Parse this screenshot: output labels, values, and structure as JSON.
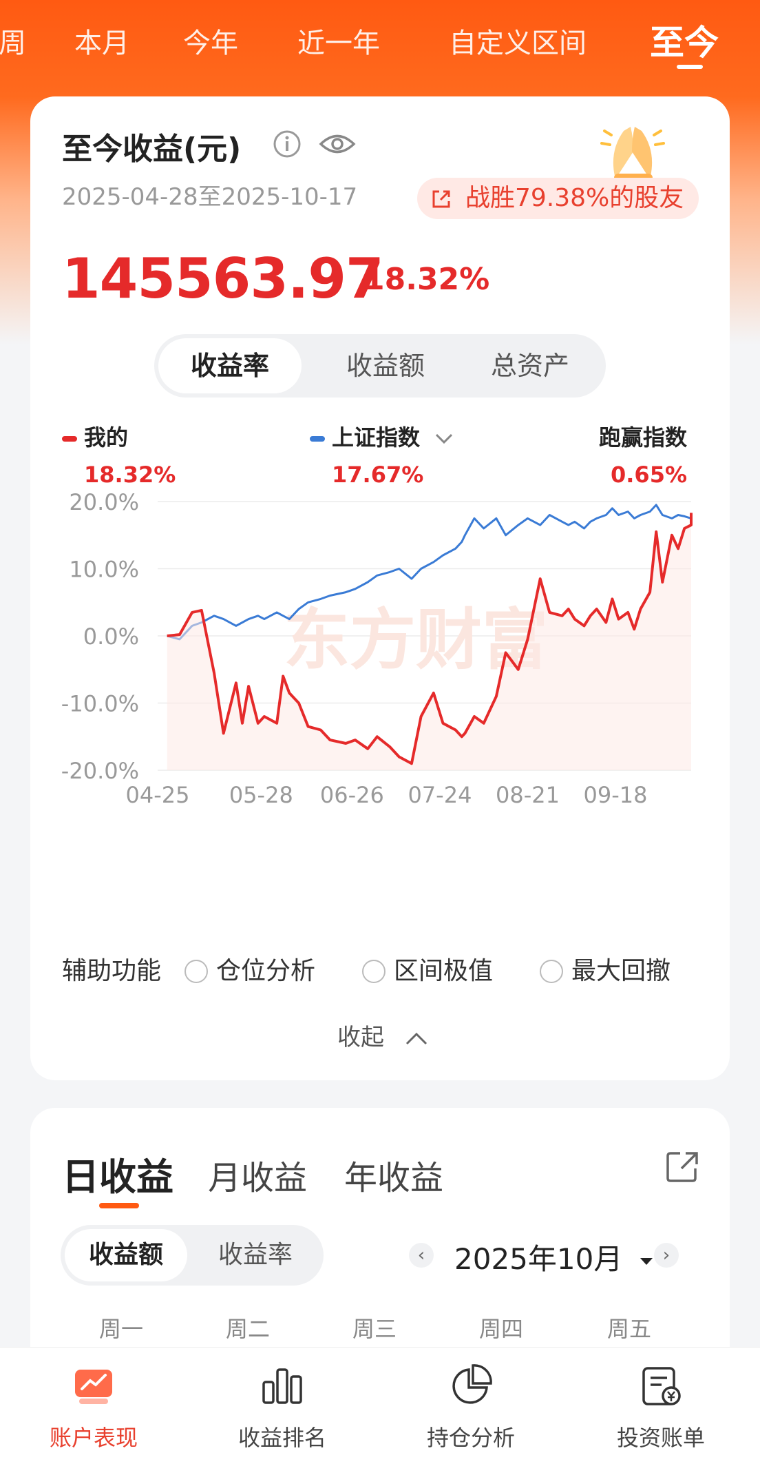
{
  "period_tabs": [
    "周",
    "本月",
    "今年",
    "近一年",
    "自定义区间",
    "至今"
  ],
  "active_period": "至今",
  "summary": {
    "title": "至今收益(元)",
    "date_range": "2025-04-28至2025-10-17",
    "beat_text": "战胜79.38%的股友",
    "amount": "145563.97",
    "percent": "18.32%"
  },
  "metric_tabs": [
    "收益率",
    "收益额",
    "总资产"
  ],
  "active_metric": "收益率",
  "legend": {
    "mine_label": "我的",
    "mine_value": "18.32%",
    "index_label": "上证指数",
    "index_value": "17.67%",
    "beat_label": "跑赢指数",
    "beat_value": "0.65%"
  },
  "watermark": "东方财富",
  "chart_data": {
    "type": "line",
    "title": "",
    "xlabel": "",
    "ylabel": "",
    "x_ticks": [
      "04-25",
      "05-28",
      "06-26",
      "07-24",
      "08-21",
      "09-18"
    ],
    "y_ticks": [
      "20.0%",
      "10.0%",
      "0.0%",
      "-10.0%",
      "-20.0%"
    ],
    "ylim": [
      -20,
      20
    ],
    "grid": true,
    "colors": {
      "mine": "#e52a2a",
      "index": "#3a7bd5"
    },
    "series": [
      {
        "name": "我的",
        "x": [
          "04-28",
          "05-02",
          "05-06",
          "05-09",
          "05-13",
          "05-16",
          "05-20",
          "05-22",
          "05-24",
          "05-27",
          "05-29",
          "06-02",
          "06-04",
          "06-06",
          "06-09",
          "06-12",
          "06-16",
          "06-19",
          "06-24",
          "06-27",
          "07-01",
          "07-04",
          "07-08",
          "07-11",
          "07-15",
          "07-18",
          "07-22",
          "07-25",
          "07-29",
          "07-31",
          "08-01",
          "08-04",
          "08-07",
          "08-11",
          "08-14",
          "08-18",
          "08-21",
          "08-25",
          "08-28",
          "09-01",
          "09-03",
          "09-05",
          "09-08",
          "09-10",
          "09-12",
          "09-15",
          "09-17",
          "09-19",
          "09-22",
          "09-24",
          "09-26",
          "09-29",
          "10-01",
          "10-03",
          "10-06",
          "10-08",
          "10-10",
          "10-13",
          "10-15",
          "10-17"
        ],
        "values": [
          0.0,
          0.2,
          3.5,
          3.8,
          -5.5,
          -14.5,
          -7.0,
          -13.0,
          -7.5,
          -13.0,
          -12.0,
          -13.0,
          -6.0,
          -8.5,
          -10.0,
          -13.5,
          -14.0,
          -15.5,
          -16.0,
          -15.5,
          -16.8,
          -15.0,
          -16.5,
          -18.0,
          -19.0,
          -12.0,
          -8.5,
          -13.0,
          -14.0,
          -15.0,
          -14.5,
          -12.0,
          -13.0,
          -9.0,
          -2.5,
          -5.0,
          -0.5,
          8.5,
          3.5,
          3.0,
          4.0,
          2.5,
          1.5,
          3.0,
          4.0,
          2.0,
          5.5,
          2.5,
          3.5,
          1.0,
          4.0,
          6.5,
          15.5,
          8.0,
          15.0,
          13.0,
          16.0,
          16.5,
          17.5,
          18.32
        ]
      },
      {
        "name": "上证指数",
        "x": [
          "04-28",
          "05-02",
          "05-06",
          "05-09",
          "05-13",
          "05-16",
          "05-20",
          "05-22",
          "05-24",
          "05-27",
          "05-29",
          "06-02",
          "06-04",
          "06-06",
          "06-09",
          "06-12",
          "06-16",
          "06-19",
          "06-24",
          "06-27",
          "07-01",
          "07-04",
          "07-08",
          "07-11",
          "07-15",
          "07-18",
          "07-22",
          "07-25",
          "07-29",
          "07-31",
          "08-01",
          "08-04",
          "08-07",
          "08-11",
          "08-14",
          "08-18",
          "08-21",
          "08-25",
          "08-28",
          "09-01",
          "09-03",
          "09-05",
          "09-08",
          "09-10",
          "09-12",
          "09-15",
          "09-17",
          "09-19",
          "09-22",
          "09-24",
          "09-26",
          "09-29",
          "10-01",
          "10-03",
          "10-06",
          "10-08",
          "10-10",
          "10-13",
          "10-15",
          "10-17"
        ],
        "values": [
          0.0,
          -0.5,
          1.5,
          2.0,
          3.0,
          2.5,
          1.5,
          2.0,
          2.5,
          3.0,
          2.5,
          3.5,
          3.0,
          2.5,
          4.0,
          5.0,
          5.5,
          6.0,
          6.5,
          7.0,
          8.0,
          9.0,
          9.5,
          10.0,
          8.5,
          10.0,
          11.0,
          12.0,
          13.0,
          14.0,
          15.0,
          17.5,
          16.0,
          17.5,
          15.0,
          16.5,
          17.5,
          16.5,
          18.0,
          17.0,
          16.5,
          17.0,
          16.0,
          17.0,
          17.5,
          18.0,
          19.0,
          18.0,
          18.5,
          17.5,
          18.0,
          18.5,
          19.5,
          18.0,
          17.5,
          18.0,
          17.8,
          17.5,
          17.6,
          17.67
        ]
      }
    ]
  },
  "aux": {
    "label": "辅助功能",
    "options": [
      "仓位分析",
      "区间极值",
      "最大回撤"
    ],
    "collapse": "收起"
  },
  "daily": {
    "tabs": [
      "日收益",
      "月收益",
      "年收益"
    ],
    "active_tab": "日收益",
    "mode_tabs": [
      "收益额",
      "收益率"
    ],
    "active_mode": "收益额",
    "month": "2025年10月",
    "weekdays": [
      "周一",
      "周二",
      "周三",
      "周四",
      "周五"
    ]
  },
  "bottom_nav": [
    {
      "label": "账户表现",
      "icon": "trend-icon",
      "active": true
    },
    {
      "label": "收益排名",
      "icon": "bar-chart-icon",
      "active": false
    },
    {
      "label": "持仓分析",
      "icon": "pie-chart-icon",
      "active": false
    },
    {
      "label": "投资账单",
      "icon": "bill-icon",
      "active": false
    }
  ]
}
